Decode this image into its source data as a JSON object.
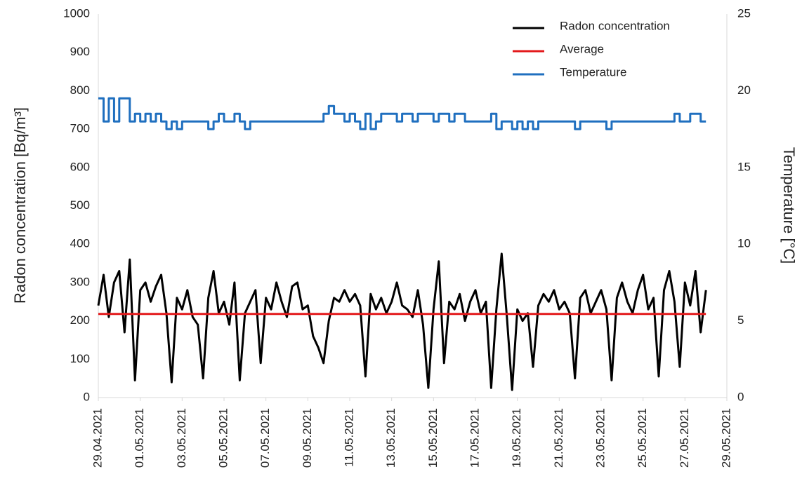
{
  "chart_data": {
    "type": "line",
    "y_label": "Radon concentration [Bq/m³]",
    "y2_label": "Temperature [°C]",
    "ylim": [
      0,
      1000
    ],
    "yticks": [
      0,
      100,
      200,
      300,
      400,
      500,
      600,
      700,
      800,
      900,
      1000
    ],
    "y2lim": [
      0,
      25
    ],
    "y2ticks": [
      0,
      5,
      10,
      15,
      20,
      25
    ],
    "xlim": [
      "29.04.2021",
      "29.05.2021"
    ],
    "xticks": [
      "29.04.2021",
      "01.05.2021",
      "03.05.2021",
      "05.05.2021",
      "07.05.2021",
      "09.05.2021",
      "11.05.2021",
      "13.05.2021",
      "15.05.2021",
      "17.05.2021",
      "19.05.2021",
      "21.05.2021",
      "23.05.2021",
      "25.05.2021",
      "27.05.2021",
      "29.05.2021"
    ],
    "legend": "top-right",
    "x": [
      "29.04.2021 00:00",
      "29.04.2021 06:00",
      "29.04.2021 12:00",
      "29.04.2021 18:00",
      "30.04.2021 00:00",
      "30.04.2021 06:00",
      "30.04.2021 12:00",
      "30.04.2021 18:00",
      "01.05.2021 00:00",
      "01.05.2021 06:00",
      "01.05.2021 12:00",
      "01.05.2021 18:00",
      "02.05.2021 00:00",
      "02.05.2021 06:00",
      "02.05.2021 12:00",
      "02.05.2021 18:00",
      "03.05.2021 00:00",
      "03.05.2021 06:00",
      "03.05.2021 12:00",
      "03.05.2021 18:00",
      "04.05.2021 00:00",
      "04.05.2021 06:00",
      "04.05.2021 12:00",
      "04.05.2021 18:00",
      "05.05.2021 00:00",
      "05.05.2021 06:00",
      "05.05.2021 12:00",
      "05.05.2021 18:00",
      "06.05.2021 00:00",
      "06.05.2021 06:00",
      "06.05.2021 12:00",
      "06.05.2021 18:00",
      "07.05.2021 00:00",
      "07.05.2021 06:00",
      "07.05.2021 12:00",
      "07.05.2021 18:00",
      "08.05.2021 00:00",
      "08.05.2021 06:00",
      "08.05.2021 12:00",
      "08.05.2021 18:00",
      "09.05.2021 00:00",
      "09.05.2021 06:00",
      "09.05.2021 12:00",
      "09.05.2021 18:00",
      "10.05.2021 00:00",
      "10.05.2021 06:00",
      "10.05.2021 12:00",
      "10.05.2021 18:00",
      "11.05.2021 00:00",
      "11.05.2021 06:00",
      "11.05.2021 12:00",
      "11.05.2021 18:00",
      "12.05.2021 00:00",
      "12.05.2021 06:00",
      "12.05.2021 12:00",
      "12.05.2021 18:00",
      "13.05.2021 00:00",
      "13.05.2021 06:00",
      "13.05.2021 12:00",
      "13.05.2021 18:00",
      "14.05.2021 00:00",
      "14.05.2021 06:00",
      "14.05.2021 12:00",
      "14.05.2021 18:00",
      "15.05.2021 00:00",
      "15.05.2021 06:00",
      "15.05.2021 12:00",
      "15.05.2021 18:00",
      "16.05.2021 00:00",
      "16.05.2021 06:00",
      "16.05.2021 12:00",
      "16.05.2021 18:00",
      "17.05.2021 00:00",
      "17.05.2021 06:00",
      "17.05.2021 12:00",
      "17.05.2021 18:00",
      "18.05.2021 00:00",
      "18.05.2021 06:00",
      "18.05.2021 12:00",
      "18.05.2021 18:00",
      "19.05.2021 00:00",
      "19.05.2021 06:00",
      "19.05.2021 12:00",
      "19.05.2021 18:00",
      "20.05.2021 00:00",
      "20.05.2021 06:00",
      "20.05.2021 12:00",
      "20.05.2021 18:00",
      "21.05.2021 00:00",
      "21.05.2021 06:00",
      "21.05.2021 12:00",
      "21.05.2021 18:00",
      "22.05.2021 00:00",
      "22.05.2021 06:00",
      "22.05.2021 12:00",
      "22.05.2021 18:00",
      "23.05.2021 00:00",
      "23.05.2021 06:00",
      "23.05.2021 12:00",
      "23.05.2021 18:00",
      "24.05.2021 00:00",
      "24.05.2021 06:00",
      "24.05.2021 12:00",
      "24.05.2021 18:00",
      "25.05.2021 00:00",
      "25.05.2021 06:00",
      "25.05.2021 12:00",
      "25.05.2021 18:00",
      "26.05.2021 00:00",
      "26.05.2021 06:00",
      "26.05.2021 12:00",
      "26.05.2021 18:00",
      "27.05.2021 00:00",
      "27.05.2021 06:00",
      "27.05.2021 12:00",
      "27.05.2021 18:00",
      "28.05.2021 00:00"
    ],
    "series": [
      {
        "name": "Radon concentration",
        "color": "#000000",
        "values": [
          240,
          320,
          210,
          300,
          330,
          170,
          360,
          45,
          280,
          300,
          250,
          290,
          320,
          220,
          40,
          260,
          230,
          280,
          210,
          190,
          50,
          260,
          330,
          220,
          250,
          190,
          300,
          45,
          220,
          250,
          280,
          90,
          260,
          230,
          300,
          250,
          210,
          290,
          300,
          230,
          240,
          160,
          130,
          90,
          200,
          260,
          250,
          280,
          250,
          270,
          240,
          55,
          270,
          230,
          260,
          220,
          250,
          300,
          240,
          230,
          210,
          280,
          190,
          25,
          230,
          355,
          90,
          250,
          230,
          270,
          200,
          250,
          280,
          220,
          250,
          25,
          230,
          375,
          210,
          20,
          230,
          200,
          220,
          80,
          240,
          270,
          250,
          280,
          230,
          250,
          220,
          50,
          260,
          280,
          220,
          250,
          280,
          230,
          45,
          260,
          300,
          250,
          220,
          280,
          320,
          230,
          260,
          55,
          280,
          330,
          250,
          80,
          300,
          240,
          330,
          170,
          280
        ]
      },
      {
        "name": "Average",
        "color": "#e31a1c",
        "value": 218
      },
      {
        "name": "Temperature",
        "color": "#1f6fbf",
        "axis": "y2",
        "values": [
          19.5,
          18,
          19.5,
          18,
          19.5,
          19.5,
          18,
          18.5,
          18,
          18.5,
          18,
          18.5,
          18,
          17.5,
          18,
          17.5,
          18,
          18,
          18,
          18,
          18,
          17.5,
          18,
          18.5,
          18,
          18,
          18.5,
          18,
          17.5,
          18,
          18,
          18,
          18,
          18,
          18,
          18,
          18,
          18,
          18,
          18,
          18,
          18,
          18,
          18.5,
          19,
          18.5,
          18.5,
          18,
          18.5,
          18,
          17.5,
          18.5,
          17.5,
          18,
          18.5,
          18.5,
          18.5,
          18,
          18.5,
          18.5,
          18,
          18.5,
          18.5,
          18.5,
          18,
          18.5,
          18.5,
          18,
          18.5,
          18.5,
          18,
          18,
          18,
          18,
          18,
          18.5,
          17.5,
          18,
          18,
          17.5,
          18,
          17.5,
          18,
          17.5,
          18,
          18,
          18,
          18,
          18,
          18,
          18,
          17.5,
          18,
          18,
          18,
          18,
          18,
          17.5,
          18,
          18,
          18,
          18,
          18,
          18,
          18,
          18,
          18,
          18,
          18,
          18,
          18.5,
          18,
          18,
          18.5,
          18.5,
          18,
          18
        ]
      }
    ]
  }
}
